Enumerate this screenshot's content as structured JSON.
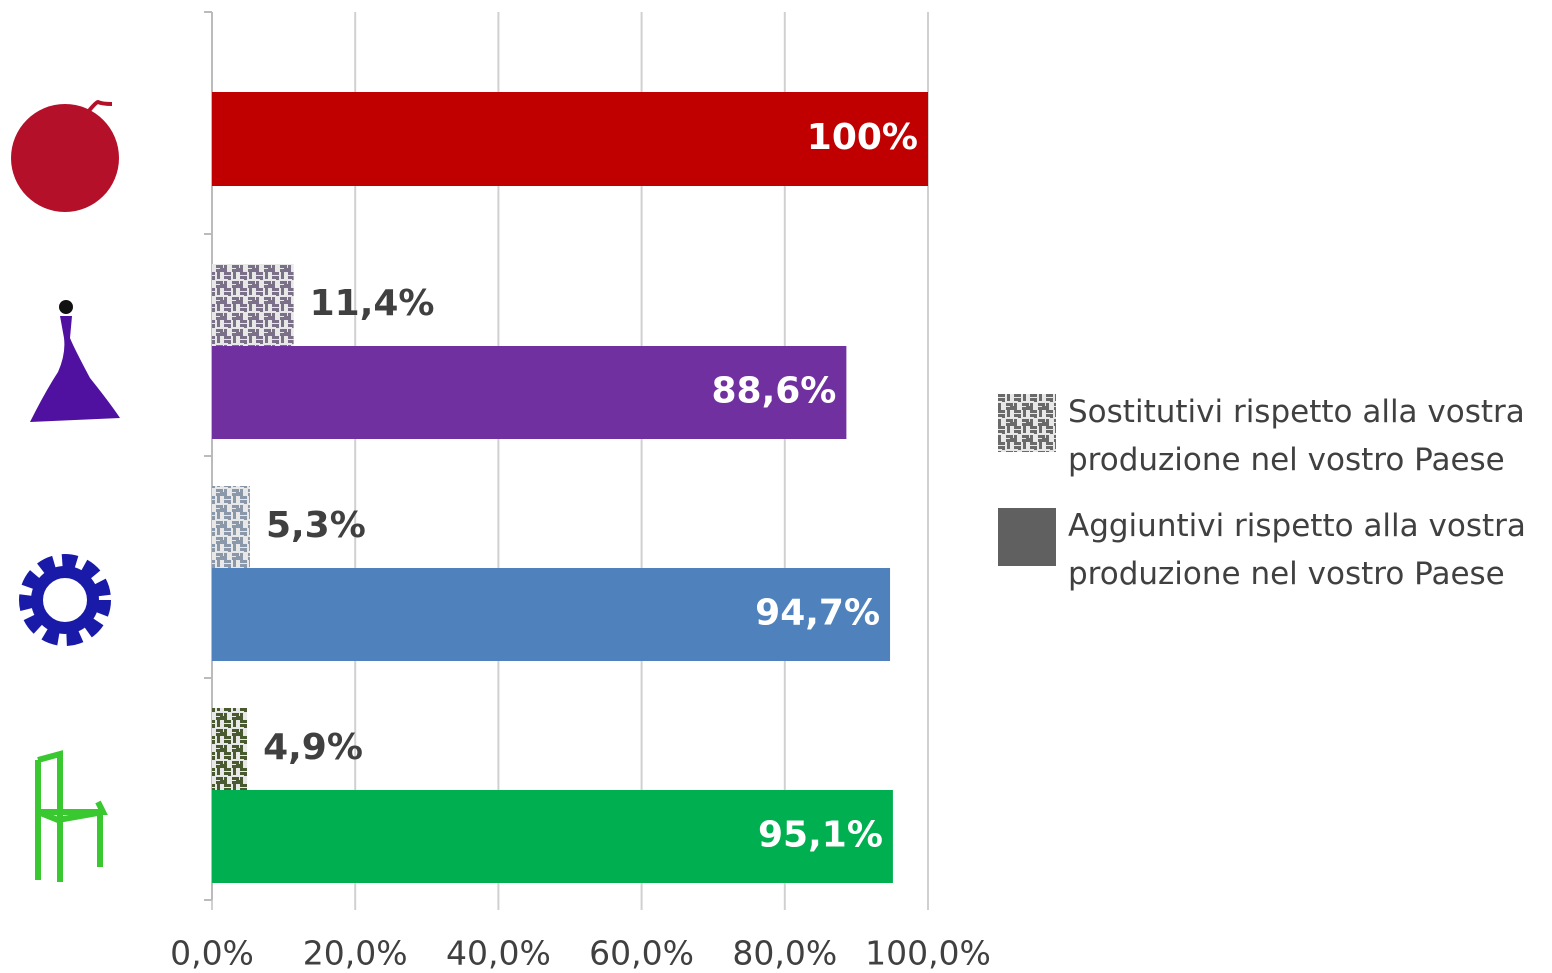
{
  "chart_data": {
    "type": "bar",
    "orientation": "horizontal",
    "categories": [
      null,
      null,
      null,
      null
    ],
    "series": [
      {
        "name": "Sostitutivi rispetto alla vostra produzione nel vostro Paese",
        "color": "#6a6a6a",
        "pattern": true,
        "colors": [
          null,
          "#7a7088",
          "#8a98aa",
          "#4a5a30"
        ],
        "values": [
          null,
          11.4,
          5.3,
          4.9
        ],
        "value_labels": [
          null,
          "11,4%",
          "5,3%",
          "4,9%"
        ]
      },
      {
        "name": "Aggiuntivi rispetto alla vostra produzione nel vostro Paese",
        "color": "#606060",
        "pattern": false,
        "colors": [
          "#c00000",
          "#7030a0",
          "#4f81bd",
          "#00b050"
        ],
        "values": [
          100,
          88.6,
          94.7,
          95.1
        ],
        "value_labels": [
          "100%",
          "88,6%",
          "94,7%",
          "95,1%"
        ]
      }
    ],
    "xlim": [
      0,
      100
    ],
    "xticks": [
      {
        "value": 0,
        "label": "0,0%"
      },
      {
        "value": 20,
        "label": "20,0%"
      },
      {
        "value": 40,
        "label": "40,0%"
      },
      {
        "value": 60,
        "label": "60,0%"
      },
      {
        "value": 80,
        "label": "80,0%"
      },
      {
        "value": 100,
        "label": "100,0%"
      }
    ],
    "grid": true,
    "legend": "right"
  }
}
